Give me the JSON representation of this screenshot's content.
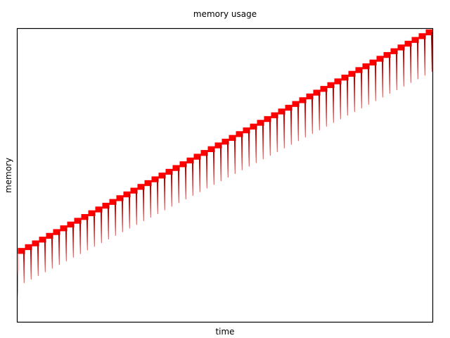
{
  "chart_data": {
    "type": "line",
    "title": "memory usage",
    "xlabel": "time",
    "ylabel": "memory",
    "ylim": [
      0,
      100
    ],
    "xlim": [
      0,
      100
    ],
    "grid": false,
    "legend": "none",
    "series": [
      {
        "color": "#ff0000",
        "cycles": 59,
        "start_peak": 24.2,
        "end_peak": 98.8,
        "band_thickness": 2.0,
        "dip_depth_start": 11.0,
        "dip_depth_end": 13.5,
        "initial_low": 10.8
      }
    ]
  }
}
